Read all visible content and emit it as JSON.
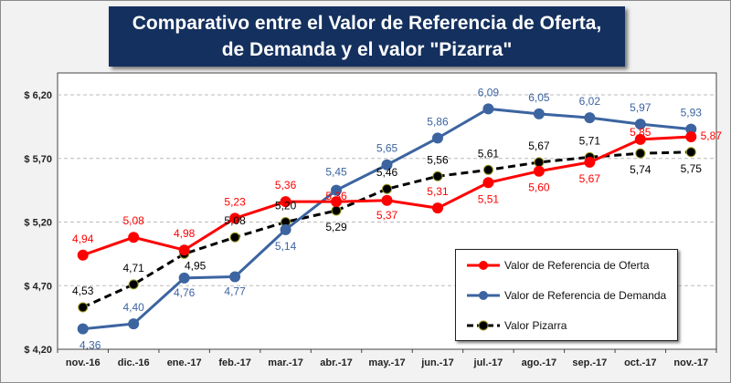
{
  "chart_data": {
    "type": "line",
    "title": "Comparativo entre el Valor de Referencia de Oferta, de Demanda y el valor \"Pizarra\"",
    "xlabel": "",
    "ylabel": "",
    "categories": [
      "nov.-16",
      "dic.-16",
      "ene.-17",
      "feb.-17",
      "mar.-17",
      "abr.-17",
      "may.-17",
      "jun.-17",
      "jul.-17",
      "ago.-17",
      "sep.-17",
      "oct.-17",
      "nov.-17"
    ],
    "ylim": [
      4.2,
      6.2
    ],
    "yticks": [
      4.2,
      4.7,
      5.2,
      5.7,
      6.2
    ],
    "ytick_labels": [
      "$ 4,20",
      "$ 4,70",
      "$ 5,20",
      "$ 5,70",
      "$ 6,20"
    ],
    "grid": "horizontal dashed",
    "legend_position": "bottom-right",
    "series": [
      {
        "name": "Valor de Referencia de Oferta",
        "color": "#ff0000",
        "style": "solid",
        "values": [
          4.94,
          5.08,
          4.98,
          5.23,
          5.36,
          5.36,
          5.37,
          5.31,
          5.51,
          5.6,
          5.67,
          5.85,
          5.87
        ],
        "labels": [
          "4,94",
          "5,08",
          "4,98",
          "5,23",
          "5,36",
          "5,36",
          "5,37",
          "5,31",
          "5,51",
          "5,60",
          "5,67",
          "5,85",
          "5,87"
        ]
      },
      {
        "name": "Valor de Referencia de Demanda",
        "color": "#3c64a0",
        "style": "solid",
        "values": [
          4.36,
          4.4,
          4.76,
          4.77,
          5.14,
          5.45,
          5.65,
          5.86,
          6.09,
          6.05,
          6.02,
          5.97,
          5.93
        ],
        "labels": [
          "4,36",
          "4,40",
          "4,76",
          "4,77",
          "5,14",
          "5,45",
          "5,65",
          "5,86",
          "6,09",
          "6,05",
          "6,02",
          "5,97",
          "5,93"
        ]
      },
      {
        "name": "Valor Pizarra",
        "color": "#000000",
        "style": "dashed",
        "values": [
          4.53,
          4.71,
          4.95,
          5.08,
          5.2,
          5.29,
          5.46,
          5.56,
          5.61,
          5.67,
          5.71,
          5.74,
          5.75
        ],
        "labels": [
          "4,53",
          "4,71",
          "4,95",
          "5,08",
          "5,20",
          "5,29",
          "5,46",
          "5,56",
          "5,61",
          "5,67",
          "5,71",
          "5,74",
          "5,75"
        ]
      }
    ]
  }
}
